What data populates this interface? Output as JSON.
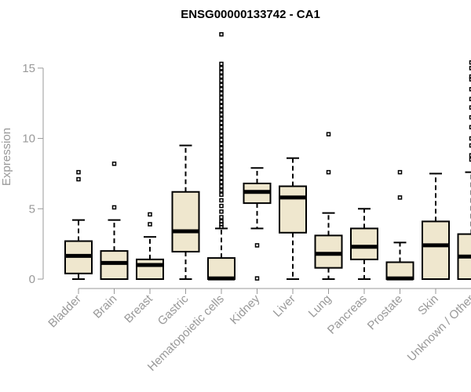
{
  "chart_data": {
    "type": "boxplot",
    "title": "ENSG00000133742 - CA1",
    "ylabel": "Expression",
    "xlabel": "",
    "ylim": [
      0,
      17.5
    ],
    "yticks": [
      0,
      5,
      10,
      15
    ],
    "colors": {
      "box_fill": "#efe7ce",
      "box_stroke": "#000000",
      "axis": "#999999"
    },
    "categories": [
      "Bladder",
      "Brain",
      "Breast",
      "Gastric",
      "Hematopoietic cells",
      "Kidney",
      "Liver",
      "Lung",
      "Pancreas",
      "Prostate",
      "Skin",
      "Unknown / Other"
    ],
    "boxes": [
      {
        "category": "Bladder",
        "whisker_low": 0.0,
        "q1": 0.4,
        "median": 1.65,
        "q3": 2.7,
        "whisker_high": 4.2,
        "outliers": [
          7.1,
          7.6
        ]
      },
      {
        "category": "Brain",
        "whisker_low": 0.0,
        "q1": 0.0,
        "median": 1.15,
        "q3": 2.0,
        "whisker_high": 4.2,
        "outliers": [
          5.1,
          8.2
        ]
      },
      {
        "category": "Breast",
        "whisker_low": 0.0,
        "q1": 0.0,
        "median": 1.0,
        "q3": 1.4,
        "whisker_high": 3.0,
        "outliers": [
          3.9,
          4.6
        ]
      },
      {
        "category": "Gastric",
        "whisker_low": 0.0,
        "q1": 1.95,
        "median": 3.4,
        "q3": 6.2,
        "whisker_high": 9.5,
        "outliers": []
      },
      {
        "category": "Hematopoietic cells",
        "whisker_low": 0.0,
        "q1": 0.0,
        "median": 0.05,
        "q3": 1.5,
        "whisker_high": 3.6,
        "outliers": [
          3.7,
          3.9,
          4.1,
          4.4,
          4.8,
          5.2,
          5.6,
          6.0,
          6.3,
          6.6,
          6.9,
          7.2,
          7.5,
          7.8,
          8.1,
          8.4,
          8.7,
          9.0,
          9.3,
          9.6,
          9.9,
          10.2,
          10.5,
          10.8,
          11.1,
          11.4,
          11.7,
          12.0,
          12.3,
          12.6,
          12.9,
          13.2,
          13.5,
          13.8,
          14.1,
          14.4,
          14.7,
          15.0,
          15.3,
          17.4
        ]
      },
      {
        "category": "Kidney",
        "whisker_low": 3.6,
        "q1": 5.4,
        "median": 6.2,
        "q3": 6.8,
        "whisker_high": 7.9,
        "outliers": [
          0.05,
          2.4
        ]
      },
      {
        "category": "Liver",
        "whisker_low": 0.0,
        "q1": 3.3,
        "median": 5.8,
        "q3": 6.6,
        "whisker_high": 8.6,
        "outliers": []
      },
      {
        "category": "Lung",
        "whisker_low": 0.0,
        "q1": 0.8,
        "median": 1.8,
        "q3": 3.1,
        "whisker_high": 4.7,
        "outliers": [
          7.6,
          10.3
        ]
      },
      {
        "category": "Pancreas",
        "whisker_low": 0.0,
        "q1": 1.4,
        "median": 2.3,
        "q3": 3.6,
        "whisker_high": 5.0,
        "outliers": []
      },
      {
        "category": "Prostate",
        "whisker_low": 0.0,
        "q1": 0.0,
        "median": 0.05,
        "q3": 1.2,
        "whisker_high": 2.6,
        "outliers": [
          5.8,
          7.6
        ]
      },
      {
        "category": "Skin",
        "whisker_low": 0.0,
        "q1": 0.0,
        "median": 2.4,
        "q3": 4.1,
        "whisker_high": 7.5,
        "outliers": []
      },
      {
        "category": "Unknown / Other",
        "whisker_low": 0.0,
        "q1": 0.0,
        "median": 1.6,
        "q3": 3.2,
        "whisker_high": 7.6,
        "outliers": [
          8.5,
          8.8,
          9.5,
          10.0,
          10.8,
          11.5,
          12.2,
          12.8,
          13.5,
          14.2,
          14.4,
          15.0,
          15.4
        ]
      }
    ]
  }
}
